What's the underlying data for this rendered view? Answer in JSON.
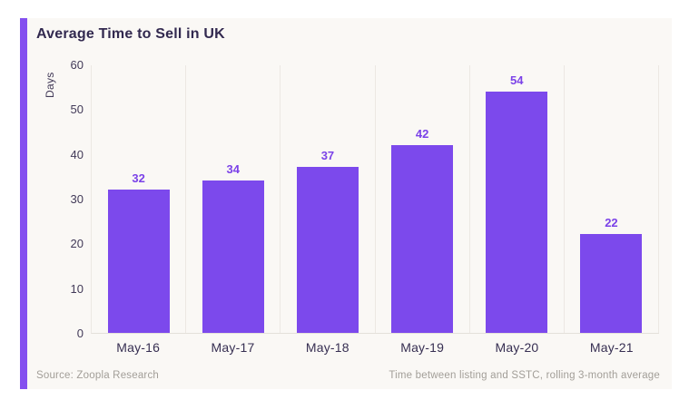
{
  "page": {
    "background": "#ffffff"
  },
  "card": {
    "background": "#faf8f5",
    "accent_color": "#8450ef"
  },
  "chart_data": {
    "type": "bar",
    "title": "Average Time to Sell in UK",
    "xlabel": "",
    "ylabel": "Days",
    "categories": [
      "May-16",
      "May-17",
      "May-18",
      "May-19",
      "May-20",
      "May-21"
    ],
    "values": [
      32,
      34,
      37,
      42,
      54,
      22
    ],
    "ylim": [
      0,
      60
    ],
    "yticks": [
      0,
      10,
      20,
      30,
      40,
      50,
      60
    ],
    "bar_color": "#7c49ec",
    "value_label_color": "#7b42e8",
    "grid": "vertical-column-separators-only",
    "legend_position": "none"
  },
  "footer": {
    "source": "Source: Zoopla Research",
    "note": "Time between listing and SSTC, rolling 3-month average"
  }
}
